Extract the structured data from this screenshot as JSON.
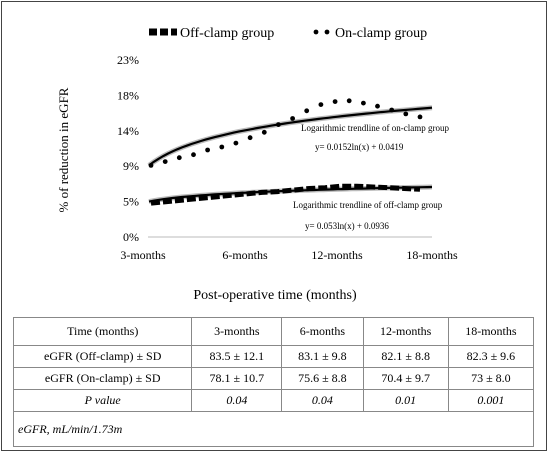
{
  "chart_data": {
    "type": "line",
    "legend": {
      "placement": "top",
      "entries": [
        "Off-clamp group",
        "On-clamp group"
      ]
    },
    "ylabel": "% of reduction in eGFR",
    "xlabel": "Post-operative time (months)",
    "y_ticks": [
      "0%",
      "5%",
      "9%",
      "14%",
      "18%",
      "23%"
    ],
    "x_ticks": [
      "3-months",
      "6-months",
      "12-months",
      "18-months"
    ],
    "ylim": [
      0,
      23
    ],
    "grid": false,
    "series": [
      {
        "name": "Off-clamp group",
        "style": "dashed",
        "values": [
          4.4,
          4.6,
          4.8,
          5.0,
          5.2,
          5.4,
          5.6,
          5.8,
          5.9,
          6.1,
          6.3,
          6.4,
          6.6,
          6.6,
          6.5,
          6.4,
          6.3,
          6.2
        ]
      },
      {
        "name": "On-clamp group",
        "style": "dotted",
        "values": [
          9.3,
          9.8,
          10.3,
          10.7,
          11.3,
          11.7,
          12.2,
          12.9,
          13.6,
          14.6,
          15.4,
          16.4,
          17.2,
          17.6,
          17.7,
          17.4,
          17.0,
          16.5,
          16.0,
          15.6
        ]
      }
    ],
    "trendlines": [
      {
        "series": "On-clamp group",
        "label": "Logarithmic trendline of on-clamp group",
        "equation": "y= 0.0152ln(x) + 0.0419",
        "start": 9.3,
        "end": 16.8
      },
      {
        "series": "Off-clamp group",
        "label": "Logarithmic trendline of off-clamp group",
        "equation": "y= 0.053ln(x) + 0.0936",
        "start": 4.6,
        "end": 6.5
      }
    ]
  },
  "table": {
    "header": [
      "Time (months)",
      "3-months",
      "6-months",
      "12-months",
      "18-months"
    ],
    "rows": [
      [
        "eGFR (Off-clamp) ± SD",
        "83.5 ± 12.1",
        "83.1 ± 9.8",
        "82.1 ± 8.8",
        "82.3 ± 9.6"
      ],
      [
        "eGFR (On-clamp) ± SD",
        "78.1 ± 10.7",
        "75.6 ± 8.8",
        "70.4 ± 9.7",
        "73 ± 8.0"
      ],
      [
        "P value",
        "0.04",
        "0.04",
        "0.01",
        "0.001"
      ]
    ],
    "note": "eGFR, mL/min/1.73m"
  },
  "colors": {
    "line": "#000000",
    "trend_shadow": "#bbbbbb"
  }
}
